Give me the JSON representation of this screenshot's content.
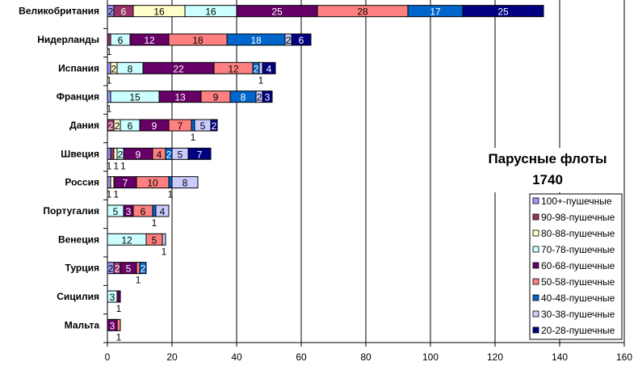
{
  "chart_data": {
    "type": "bar",
    "orientation": "horizontal",
    "stacked": true,
    "title": [
      "Парусные флоты",
      "1740"
    ],
    "xlim": [
      0,
      160
    ],
    "xticks": [
      0,
      20,
      40,
      60,
      80,
      100,
      120,
      140,
      160
    ],
    "grid": "vertical",
    "legend_position": "right",
    "categories": [
      "Великобритания",
      "Нидерланды",
      "Испания",
      "Франция",
      "Дания",
      "Швеция",
      "Россия",
      "Португалия",
      "Венеция",
      "Турция",
      "Сицилия",
      "Мальта"
    ],
    "series": [
      {
        "name": "100+-пушечные",
        "color": "#9999ff",
        "values": [
          2,
          0,
          1,
          1,
          0,
          1,
          1,
          0,
          0,
          2,
          0,
          0
        ]
      },
      {
        "name": "90-98-пушечные",
        "color": "#993366",
        "values": [
          6,
          1,
          0,
          0,
          2,
          1,
          0,
          0,
          0,
          2,
          0,
          0
        ]
      },
      {
        "name": "80-88-пушечные",
        "color": "#ffffcc",
        "values": [
          16,
          0,
          2,
          0,
          2,
          1,
          1,
          0,
          0,
          0,
          0,
          0
        ]
      },
      {
        "name": "70-78-пушечные",
        "color": "#ccffff",
        "values": [
          16,
          6,
          8,
          15,
          6,
          2,
          0,
          5,
          12,
          0,
          3,
          0
        ]
      },
      {
        "name": "60-68-пушечные",
        "color": "#660066",
        "values": [
          25,
          12,
          22,
          13,
          9,
          9,
          7,
          3,
          0,
          5,
          1,
          3
        ]
      },
      {
        "name": "50-58-пушечные",
        "color": "#ff8080",
        "values": [
          28,
          18,
          12,
          9,
          7,
          4,
          10,
          6,
          5,
          1,
          0,
          1
        ]
      },
      {
        "name": "40-48-пушечные",
        "color": "#0066cc",
        "values": [
          17,
          18,
          2,
          8,
          1,
          2,
          1,
          1,
          0,
          2,
          0,
          0
        ]
      },
      {
        "name": "30-38-пушечные",
        "color": "#ccccff",
        "values": [
          0,
          2,
          1,
          2,
          5,
          5,
          8,
          4,
          1,
          0,
          0,
          0
        ]
      },
      {
        "name": "20-28-пушечные",
        "color": "#000080",
        "values": [
          25,
          6,
          4,
          3,
          2,
          7,
          0,
          0,
          0,
          0,
          0,
          0
        ]
      }
    ]
  }
}
